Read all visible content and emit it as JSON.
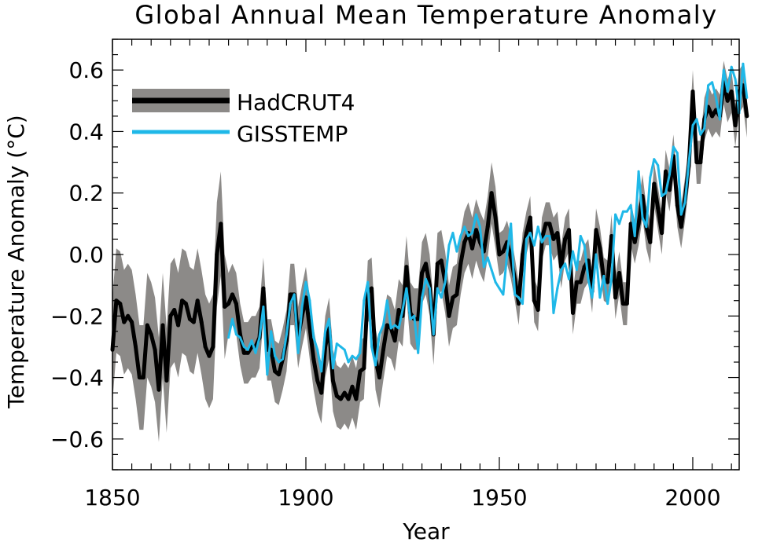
{
  "chart_data": {
    "type": "line",
    "title": "Global Annual Mean Temperature Anomaly",
    "xlabel": "Year",
    "ylabel": "Temperature Anomaly (°C)",
    "xlim": [
      1850,
      2012
    ],
    "ylim": [
      -0.7,
      0.7
    ],
    "x_ticks": [
      1850,
      1900,
      1950,
      2000
    ],
    "x_tick_labels": [
      "1850",
      "1900",
      "1950",
      "2000"
    ],
    "y_ticks": [
      -0.6,
      -0.4,
      -0.2,
      0.0,
      0.2,
      0.4,
      0.6
    ],
    "y_tick_labels": [
      "−0.6",
      "−0.4",
      "−0.2",
      "0.0",
      "0.2",
      "0.4",
      "0.6"
    ],
    "grid": false,
    "legend_position": "top-left",
    "series": [
      {
        "name": "HadCRUT4",
        "color": "#000000",
        "band_color": "#8c8a88",
        "x_start": 1850,
        "values": [
          -0.31,
          -0.15,
          -0.16,
          -0.22,
          -0.2,
          -0.22,
          -0.3,
          -0.4,
          -0.4,
          -0.23,
          -0.26,
          -0.31,
          -0.44,
          -0.23,
          -0.41,
          -0.2,
          -0.18,
          -0.23,
          -0.15,
          -0.16,
          -0.21,
          -0.22,
          -0.15,
          -0.22,
          -0.3,
          -0.33,
          -0.3,
          0.0,
          0.1,
          -0.17,
          -0.16,
          -0.13,
          -0.16,
          -0.26,
          -0.32,
          -0.32,
          -0.3,
          -0.3,
          -0.27,
          -0.11,
          -0.31,
          -0.31,
          -0.38,
          -0.39,
          -0.34,
          -0.28,
          -0.13,
          -0.13,
          -0.27,
          -0.2,
          -0.14,
          -0.24,
          -0.34,
          -0.41,
          -0.45,
          -0.3,
          -0.24,
          -0.41,
          -0.46,
          -0.47,
          -0.45,
          -0.47,
          -0.43,
          -0.47,
          -0.38,
          -0.37,
          -0.12,
          -0.11,
          -0.34,
          -0.4,
          -0.31,
          -0.23,
          -0.24,
          -0.28,
          -0.18,
          -0.2,
          -0.04,
          -0.19,
          -0.21,
          -0.21,
          -0.06,
          -0.03,
          -0.1,
          -0.26,
          -0.03,
          -0.02,
          -0.09,
          -0.2,
          -0.14,
          -0.13,
          -0.03,
          0.04,
          0.07,
          0.02,
          0.08,
          0.04,
          0.01,
          0.09,
          0.2,
          0.12,
          0.0,
          0.01,
          0.04,
          -0.01,
          -0.08,
          -0.16,
          0.0,
          0.07,
          0.12,
          -0.15,
          -0.18,
          0.05,
          0.1,
          0.1,
          0.05,
          0.07,
          -0.04,
          0.05,
          0.08,
          -0.19,
          -0.09,
          -0.09,
          -0.04,
          -0.02,
          -0.12,
          0.08,
          0.02,
          -0.08,
          -0.09,
          0.06,
          -0.14,
          -0.06,
          -0.16,
          -0.16,
          0.1,
          0.04,
          0.1,
          0.19,
          0.09,
          0.04,
          0.23,
          0.15,
          0.07,
          0.27,
          0.21,
          0.32,
          0.16,
          0.09,
          0.18,
          0.29,
          0.53,
          0.3,
          0.3,
          0.44,
          0.48,
          0.45,
          0.47,
          0.45,
          0.56,
          0.5,
          0.53,
          0.42,
          0.53,
          0.55,
          0.45
        ]
      },
      {
        "name": "GISSTEMP",
        "color": "#1fb8e8",
        "x_start": 1880,
        "values": [
          -0.27,
          -0.21,
          -0.26,
          -0.27,
          -0.3,
          -0.31,
          -0.28,
          -0.32,
          -0.27,
          -0.17,
          -0.39,
          -0.25,
          -0.33,
          -0.35,
          -0.34,
          -0.26,
          -0.16,
          -0.13,
          -0.32,
          -0.17,
          -0.09,
          -0.15,
          -0.27,
          -0.31,
          -0.38,
          -0.25,
          -0.21,
          -0.37,
          -0.29,
          -0.3,
          -0.31,
          -0.35,
          -0.33,
          -0.34,
          -0.32,
          -0.15,
          -0.09,
          -0.3,
          -0.36,
          -0.26,
          -0.23,
          -0.15,
          -0.24,
          -0.23,
          -0.24,
          -0.18,
          -0.11,
          -0.21,
          -0.2,
          -0.32,
          -0.14,
          -0.08,
          -0.11,
          -0.26,
          -0.11,
          -0.14,
          -0.09,
          0.03,
          0.07,
          0.01,
          0.06,
          0.09,
          0.06,
          0.07,
          0.13,
          0.09,
          -0.04,
          -0.01,
          -0.05,
          -0.09,
          -0.11,
          -0.13,
          0.0,
          0.1,
          -0.13,
          -0.14,
          -0.16,
          0.05,
          0.07,
          0.03,
          0.09,
          0.04,
          0.06,
          0.06,
          -0.19,
          -0.11,
          -0.05,
          -0.03,
          -0.08,
          0.01,
          -0.05,
          0.06,
          0.03,
          -0.08,
          -0.14,
          0.0,
          -0.14,
          -0.07,
          -0.16,
          -0.08,
          0.13,
          0.1,
          0.14,
          0.14,
          0.16,
          0.06,
          0.27,
          0.12,
          0.09,
          0.25,
          0.31,
          0.29,
          0.19,
          0.2,
          0.26,
          0.35,
          0.33,
          0.13,
          0.17,
          0.3,
          0.42,
          0.44,
          0.39,
          0.41,
          0.55,
          0.56,
          0.51,
          0.44,
          0.6,
          0.53,
          0.61,
          0.57,
          0.46,
          0.62,
          0.51
        ]
      }
    ]
  }
}
